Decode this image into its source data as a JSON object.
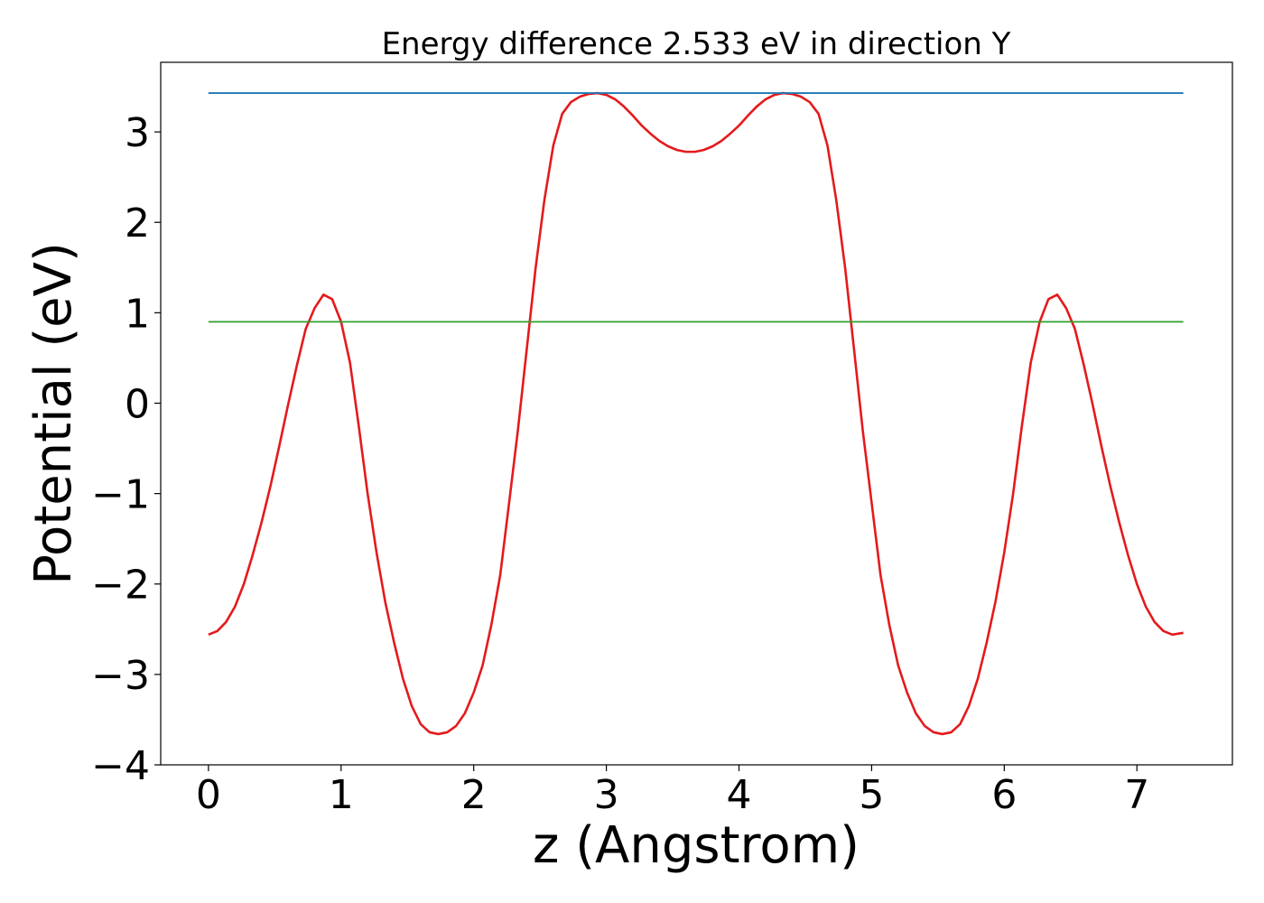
{
  "chart_data": {
    "type": "line",
    "title": "Energy difference 2.533 eV in direction Y",
    "xlabel": "z (Angstrom)",
    "ylabel": "Potential (eV)",
    "xlim": [
      -0.36,
      7.72
    ],
    "ylim": [
      -4.0,
      3.77
    ],
    "xticks": [
      0,
      1,
      2,
      3,
      4,
      5,
      6,
      7
    ],
    "xtick_labels": [
      "0",
      "1",
      "2",
      "3",
      "4",
      "5",
      "6",
      "7"
    ],
    "yticks": [
      -4,
      -3,
      -2,
      -1,
      0,
      1,
      2,
      3
    ],
    "ytick_labels": [
      "−4",
      "−3",
      "−2",
      "−1",
      "0",
      "1",
      "2",
      "3"
    ],
    "grid": false,
    "legend": "none",
    "series": [
      {
        "color": "#e41a1c",
        "x": [
          0.0,
          0.067,
          0.133,
          0.2,
          0.267,
          0.333,
          0.4,
          0.467,
          0.533,
          0.6,
          0.667,
          0.733,
          0.8,
          0.867,
          0.933,
          1.0,
          1.067,
          1.133,
          1.2,
          1.267,
          1.333,
          1.4,
          1.467,
          1.533,
          1.6,
          1.667,
          1.733,
          1.8,
          1.867,
          1.933,
          2.0,
          2.067,
          2.133,
          2.2,
          2.267,
          2.333,
          2.4,
          2.467,
          2.533,
          2.6,
          2.667,
          2.733,
          2.8,
          2.867,
          2.933,
          3.0,
          3.067,
          3.133,
          3.2,
          3.267,
          3.333,
          3.4,
          3.467,
          3.533,
          3.6,
          3.667,
          3.733,
          3.8,
          3.867,
          3.933,
          4.0,
          4.067,
          4.133,
          4.2,
          4.267,
          4.333,
          4.4,
          4.467,
          4.533,
          4.6,
          4.667,
          4.733,
          4.8,
          4.867,
          4.933,
          5.0,
          5.067,
          5.133,
          5.2,
          5.267,
          5.333,
          5.4,
          5.467,
          5.533,
          5.6,
          5.667,
          5.733,
          5.8,
          5.867,
          5.933,
          6.0,
          6.067,
          6.133,
          6.2,
          6.267,
          6.333,
          6.4,
          6.467,
          6.533,
          6.6,
          6.667,
          6.733,
          6.8,
          6.867,
          6.933,
          7.0,
          7.067,
          7.133,
          7.2,
          7.267,
          7.35
        ],
        "y": [
          -2.56,
          -2.52,
          -2.42,
          -2.25,
          -2.0,
          -1.68,
          -1.32,
          -0.92,
          -0.48,
          -0.02,
          0.42,
          0.82,
          1.05,
          1.2,
          1.15,
          0.9,
          0.45,
          -0.25,
          -1.0,
          -1.65,
          -2.2,
          -2.65,
          -3.05,
          -3.35,
          -3.55,
          -3.64,
          -3.66,
          -3.64,
          -3.57,
          -3.43,
          -3.2,
          -2.9,
          -2.45,
          -1.9,
          -1.1,
          -0.3,
          0.6,
          1.5,
          2.25,
          2.85,
          3.2,
          3.33,
          3.39,
          3.42,
          3.43,
          3.41,
          3.36,
          3.28,
          3.18,
          3.07,
          2.98,
          2.9,
          2.84,
          2.8,
          2.78,
          2.78,
          2.8,
          2.84,
          2.9,
          2.98,
          3.07,
          3.18,
          3.28,
          3.36,
          3.41,
          3.43,
          3.42,
          3.39,
          3.33,
          3.2,
          2.85,
          2.25,
          1.5,
          0.6,
          -0.3,
          -1.1,
          -1.9,
          -2.45,
          -2.9,
          -3.2,
          -3.43,
          -3.57,
          -3.64,
          -3.66,
          -3.64,
          -3.55,
          -3.35,
          -3.05,
          -2.65,
          -2.2,
          -1.65,
          -1.0,
          -0.25,
          0.45,
          0.9,
          1.15,
          1.2,
          1.05,
          0.82,
          0.42,
          -0.02,
          -0.48,
          -0.92,
          -1.32,
          -1.68,
          -2.0,
          -2.25,
          -2.42,
          -2.52,
          -2.56,
          -2.54
        ]
      },
      {
        "color": "#1f77b4",
        "x": [
          0.0,
          7.35
        ],
        "y": [
          3.43,
          3.43
        ]
      },
      {
        "color": "#2ca02c",
        "x": [
          0.0,
          7.35
        ],
        "y": [
          0.9,
          0.9
        ]
      }
    ]
  }
}
